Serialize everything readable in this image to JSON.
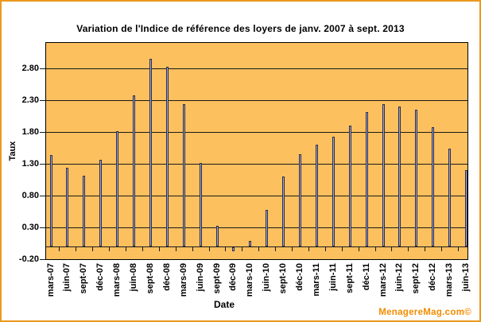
{
  "watermark": "MenagereMag.com©",
  "chart_data": {
    "type": "bar",
    "title": "Variation de l'Indice de référence des loyers de janv. 2007 à sept. 2013",
    "xlabel": "Date",
    "ylabel": "Taux",
    "categories": [
      "mars-07",
      "juin-07",
      "sept-07",
      "déc-07",
      "mars-08",
      "juin-08",
      "sept-08",
      "déc-08",
      "mars-09",
      "juin-09",
      "sept-09",
      "déc-09",
      "mars-10",
      "juin-10",
      "sept-10",
      "déc-10",
      "mars-11",
      "juin-11",
      "sept-11",
      "déc-11",
      "mars-12",
      "juin-12",
      "sept-12",
      "déc-12",
      "mars-13",
      "juin-13"
    ],
    "values": [
      1.44,
      1.24,
      1.11,
      1.36,
      1.81,
      2.38,
      2.95,
      2.83,
      2.24,
      1.31,
      0.32,
      -0.06,
      0.09,
      0.57,
      1.1,
      1.45,
      1.6,
      1.73,
      1.9,
      2.11,
      2.24,
      2.2,
      2.15,
      1.88,
      1.54,
      1.2
    ],
    "yticks": [
      "2.80",
      "2.30",
      "1.80",
      "1.30",
      "0.80",
      "0.30",
      "-0.20"
    ],
    "ylim": [
      -0.2,
      3.2
    ],
    "grid": true,
    "legend": "none",
    "colors": {
      "plot_bg": "#FCC05E",
      "bar_fill": "#A9AECA",
      "bar_border": "#2A2A50",
      "grid": "#1A1A1A",
      "frame_border": "#EC981F",
      "text": "#000000",
      "watermark": "#F28C00"
    }
  }
}
